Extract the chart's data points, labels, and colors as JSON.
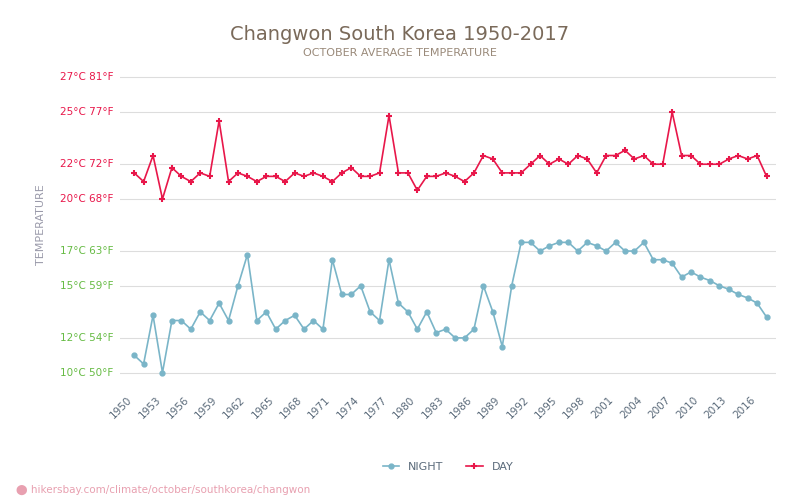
{
  "title": "Changwon South Korea 1950-2017",
  "subtitle": "OCTOBER AVERAGE TEMPERATURE",
  "ylabel": "TEMPERATURE",
  "watermark": "hikersbay.com/climate/october/southkorea/changwon",
  "title_color": "#7a6a5a",
  "subtitle_color": "#9a8a7a",
  "ylabel_color": "#9a9aaa",
  "grid_color": "#dddddd",
  "bg_color": "#ffffff",
  "tick_label_color_red": "#e8174a",
  "tick_label_color_green": "#66bb44",
  "years": [
    1950,
    1951,
    1952,
    1953,
    1954,
    1955,
    1956,
    1957,
    1958,
    1959,
    1960,
    1961,
    1962,
    1963,
    1964,
    1965,
    1966,
    1967,
    1968,
    1969,
    1970,
    1971,
    1972,
    1973,
    1974,
    1975,
    1976,
    1977,
    1978,
    1979,
    1980,
    1981,
    1982,
    1983,
    1984,
    1985,
    1986,
    1987,
    1988,
    1989,
    1990,
    1991,
    1992,
    1993,
    1994,
    1995,
    1996,
    1997,
    1998,
    1999,
    2000,
    2001,
    2002,
    2003,
    2004,
    2005,
    2006,
    2007,
    2008,
    2009,
    2010,
    2011,
    2012,
    2013,
    2014,
    2015,
    2016,
    2017
  ],
  "day_temps": [
    21.5,
    21.0,
    22.5,
    20.0,
    21.8,
    21.3,
    21.0,
    21.5,
    21.3,
    24.5,
    21.0,
    21.5,
    21.3,
    21.0,
    21.3,
    21.3,
    21.0,
    21.5,
    21.3,
    21.5,
    21.3,
    21.0,
    21.5,
    21.8,
    21.3,
    21.3,
    21.5,
    24.8,
    21.5,
    21.5,
    20.5,
    21.3,
    21.3,
    21.5,
    21.3,
    21.0,
    21.5,
    22.5,
    22.3,
    21.5,
    21.5,
    21.5,
    22.0,
    22.5,
    22.0,
    22.3,
    22.0,
    22.5,
    22.3,
    21.5,
    22.5,
    22.5,
    22.8,
    22.3,
    22.5,
    22.0,
    22.0,
    25.0,
    22.5,
    22.5,
    22.0,
    22.0,
    22.0,
    22.3,
    22.5,
    22.3,
    22.5,
    21.3
  ],
  "night_temps": [
    11.0,
    10.5,
    13.3,
    10.0,
    13.0,
    13.0,
    12.5,
    13.5,
    13.0,
    14.0,
    13.0,
    15.0,
    16.8,
    13.0,
    13.5,
    12.5,
    13.0,
    13.3,
    12.5,
    13.0,
    12.5,
    16.5,
    14.5,
    14.5,
    15.0,
    13.5,
    13.0,
    16.5,
    14.0,
    13.5,
    12.5,
    13.5,
    12.3,
    12.5,
    12.0,
    12.0,
    12.5,
    15.0,
    13.5,
    11.5,
    15.0,
    17.5,
    17.5,
    17.0,
    17.3,
    17.5,
    17.5,
    17.0,
    17.5,
    17.3,
    17.0,
    17.5,
    17.0,
    17.0,
    17.5,
    16.5,
    16.5,
    16.3,
    15.5,
    15.8,
    15.5,
    15.3,
    15.0,
    14.8,
    14.5,
    14.3,
    14.0,
    13.2
  ],
  "yticks_celsius": [
    10,
    12,
    15,
    17,
    20,
    22,
    25,
    27
  ],
  "yticks_fahrenheit": [
    50,
    54,
    59,
    63,
    68,
    72,
    77,
    81
  ],
  "ytick_colors": [
    "green",
    "green",
    "green",
    "green",
    "red",
    "red",
    "red",
    "red"
  ],
  "ylim": [
    9,
    28
  ],
  "xtick_years": [
    1950,
    1953,
    1956,
    1959,
    1962,
    1965,
    1968,
    1971,
    1974,
    1977,
    1980,
    1983,
    1986,
    1989,
    1992,
    1995,
    1998,
    2001,
    2004,
    2007,
    2010,
    2013,
    2016
  ],
  "day_color": "#e8174a",
  "night_color": "#7ab5c8",
  "marker_day": "+",
  "marker_night": "o",
  "legend_night": "NIGHT",
  "legend_day": "DAY"
}
